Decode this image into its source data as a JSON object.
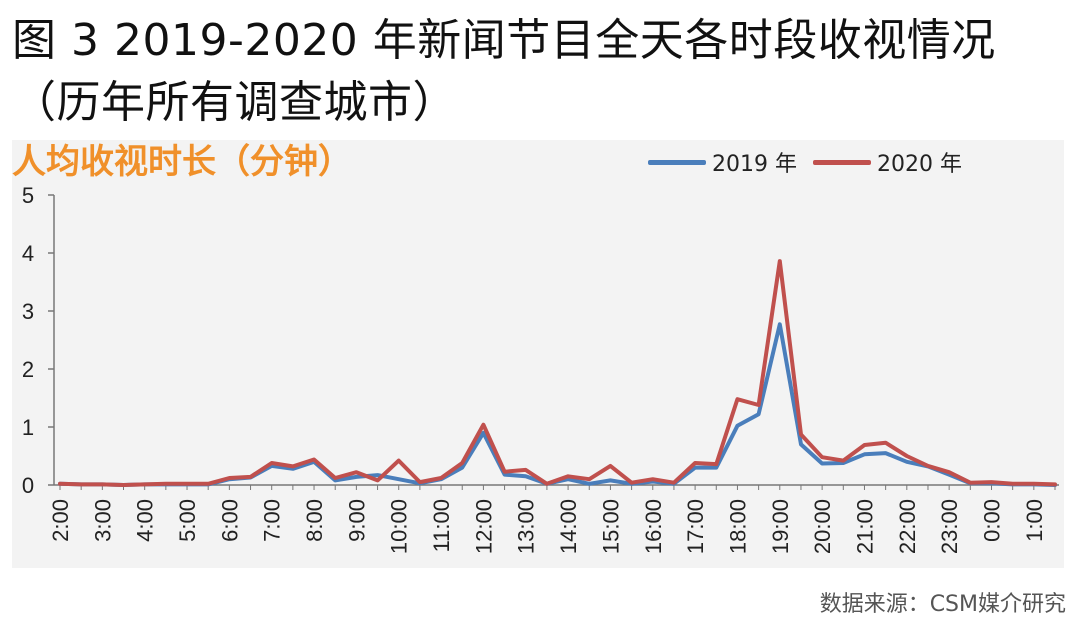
{
  "figure": {
    "title": "图 3 2019-2020 年新闻节目全天各时段收视情况（历年所有调查城市）",
    "source": "数据来源：CSM媒介研究"
  },
  "colors": {
    "series_2019": "#4a7ebb",
    "series_2020": "#c0504d",
    "ylabel": "#f0902a",
    "panel_bg": "#f3f3f3"
  },
  "chart_data": {
    "type": "line",
    "ylabel": "人均收视时长（分钟）",
    "xlabel": "",
    "ylim": [
      0,
      5
    ],
    "yticks": [
      0,
      1,
      2,
      3,
      4,
      5
    ],
    "grid": false,
    "legend_position": "top-right",
    "x_tick_labels": [
      "2:00",
      "3:00",
      "4:00",
      "5:00",
      "6:00",
      "7:00",
      "8:00",
      "9:00",
      "10:00",
      "11:00",
      "12:00",
      "13:00",
      "14:00",
      "15:00",
      "16:00",
      "17:00",
      "18:00",
      "19:00",
      "20:00",
      "21:00",
      "22:00",
      "23:00",
      "0:00",
      "1:00"
    ],
    "x": [
      "2:00",
      "2:30",
      "3:00",
      "3:30",
      "4:00",
      "4:30",
      "5:00",
      "5:30",
      "6:00",
      "6:30",
      "7:00",
      "7:30",
      "8:00",
      "8:30",
      "9:00",
      "9:30",
      "10:00",
      "10:30",
      "11:00",
      "11:30",
      "12:00",
      "12:30",
      "13:00",
      "13:30",
      "14:00",
      "14:30",
      "15:00",
      "15:30",
      "16:00",
      "16:30",
      "17:00",
      "17:30",
      "18:00",
      "18:30",
      "19:00",
      "19:30",
      "20:00",
      "20:30",
      "21:00",
      "21:30",
      "22:00",
      "22:30",
      "23:00",
      "23:30",
      "0:00",
      "0:30",
      "1:00",
      "1:30"
    ],
    "series": [
      {
        "name": "2019 年",
        "values": [
          0.02,
          0.01,
          0.01,
          0.0,
          0.01,
          0.01,
          0.01,
          0.01,
          0.1,
          0.13,
          0.33,
          0.28,
          0.4,
          0.08,
          0.14,
          0.17,
          0.1,
          0.03,
          0.1,
          0.3,
          0.9,
          0.18,
          0.15,
          0.02,
          0.1,
          0.02,
          0.08,
          0.02,
          0.06,
          0.02,
          0.3,
          0.3,
          1.02,
          1.22,
          2.77,
          0.7,
          0.37,
          0.38,
          0.53,
          0.55,
          0.4,
          0.32,
          0.18,
          0.03,
          0.03,
          0.01,
          0.01,
          0.0
        ]
      },
      {
        "name": "2020 年",
        "values": [
          0.02,
          0.01,
          0.01,
          0.0,
          0.01,
          0.02,
          0.02,
          0.02,
          0.12,
          0.14,
          0.38,
          0.32,
          0.44,
          0.12,
          0.22,
          0.08,
          0.42,
          0.05,
          0.12,
          0.38,
          1.04,
          0.23,
          0.26,
          0.02,
          0.15,
          0.1,
          0.33,
          0.04,
          0.1,
          0.04,
          0.38,
          0.36,
          1.48,
          1.38,
          3.86,
          0.87,
          0.48,
          0.42,
          0.69,
          0.73,
          0.5,
          0.33,
          0.22,
          0.04,
          0.05,
          0.02,
          0.02,
          0.01
        ]
      }
    ]
  }
}
